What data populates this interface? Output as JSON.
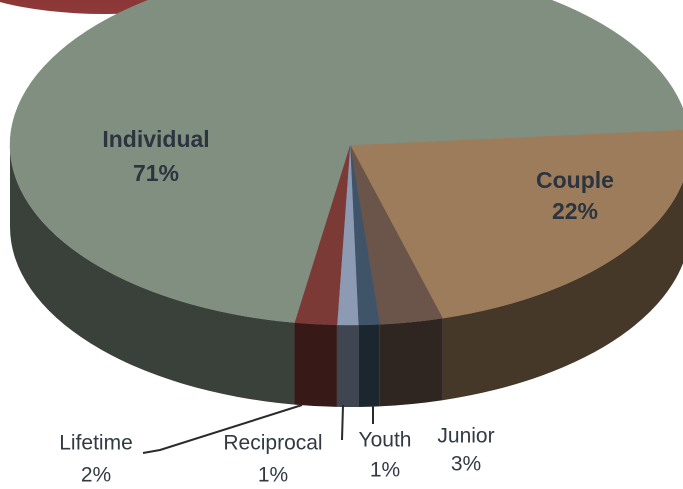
{
  "chart_data": {
    "type": "pie3d",
    "categories": [
      "Couple",
      "Junior",
      "Youth",
      "Reciprocal",
      "Lifetime",
      "Individual"
    ],
    "values": [
      22,
      3,
      1,
      1,
      2,
      71
    ],
    "value_labels": [
      "22%",
      "3%",
      "1%",
      "1%",
      "2%",
      "71%"
    ],
    "colors": [
      "#9c7c5a",
      "#6b544a",
      "#3f5469",
      "#8d9ab3",
      "#7b3a36",
      "#818f80"
    ]
  }
}
